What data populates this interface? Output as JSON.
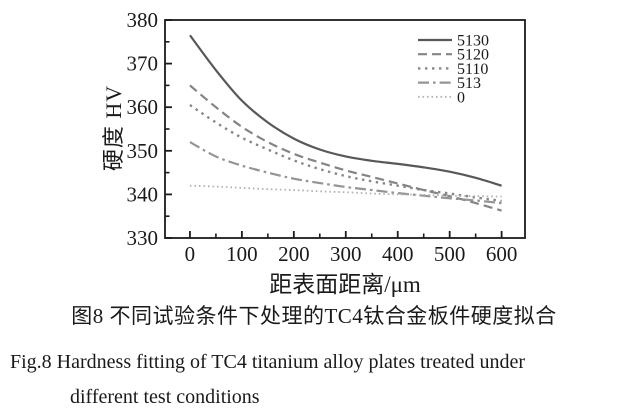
{
  "figure": {
    "captions": {
      "zh": "图8 不同试验条件下处理的TC4钛合金板件硬度拟合",
      "en_line1": "Fig.8  Hardness fitting of TC4 titanium alloy plates treated under",
      "en_line2": "different test conditions"
    }
  },
  "chart_data": {
    "type": "line",
    "title": "",
    "xlabel": "距表面距离/μm",
    "ylabel": "硬度 HV",
    "xlim": [
      -48,
      645
    ],
    "ylim": [
      330,
      380
    ],
    "xticks": [
      0,
      100,
      200,
      300,
      400,
      500,
      600
    ],
    "xminor": [
      50,
      150,
      250,
      350,
      450,
      550
    ],
    "yticks": [
      330,
      340,
      350,
      360,
      370,
      380
    ],
    "yminor": [
      335,
      345,
      355,
      365,
      375
    ],
    "grid": false,
    "legend_position": "top-right-inside",
    "axis_color": "#1c1c1c",
    "x": [
      0,
      50,
      100,
      150,
      200,
      250,
      300,
      350,
      400,
      450,
      500,
      550,
      600
    ],
    "series": [
      {
        "name": "5130",
        "style": "solid",
        "color": "#585858",
        "width": 2.2,
        "dash": "",
        "values": [
          376.5,
          368.5,
          361.5,
          356.5,
          352.8,
          350.3,
          348.7,
          347.7,
          347.0,
          346.2,
          345.2,
          343.8,
          342.0
        ]
      },
      {
        "name": "5120",
        "style": "dashed",
        "color": "#858585",
        "width": 2.2,
        "dash": "9 5",
        "values": [
          365.0,
          360.0,
          355.5,
          352.0,
          349.3,
          347.3,
          345.5,
          344.0,
          342.5,
          341.0,
          339.6,
          338.0,
          336.3
        ]
      },
      {
        "name": "5110",
        "style": "dotted",
        "color": "#868686",
        "width": 2.4,
        "dash": "2.4 4.6",
        "values": [
          360.5,
          356.5,
          353.0,
          350.3,
          347.8,
          345.8,
          344.2,
          343.0,
          342.0,
          341.0,
          340.2,
          339.3,
          338.5
        ]
      },
      {
        "name": "513",
        "style": "dash-dot",
        "color": "#949494",
        "width": 2.2,
        "dash": "11 4 2.6 4",
        "values": [
          352.0,
          348.7,
          346.6,
          345.0,
          343.6,
          342.6,
          341.7,
          341.0,
          340.3,
          339.7,
          339.1,
          338.6,
          338.0
        ]
      },
      {
        "name": "0",
        "style": "fine-dotted",
        "color": "#b2b2b2",
        "width": 1.8,
        "dash": "1.6 2.9",
        "values": [
          342.0,
          341.8,
          341.5,
          341.2,
          341.0,
          340.7,
          340.5,
          340.2,
          340.0,
          339.9,
          339.7,
          339.6,
          339.5
        ]
      }
    ]
  }
}
